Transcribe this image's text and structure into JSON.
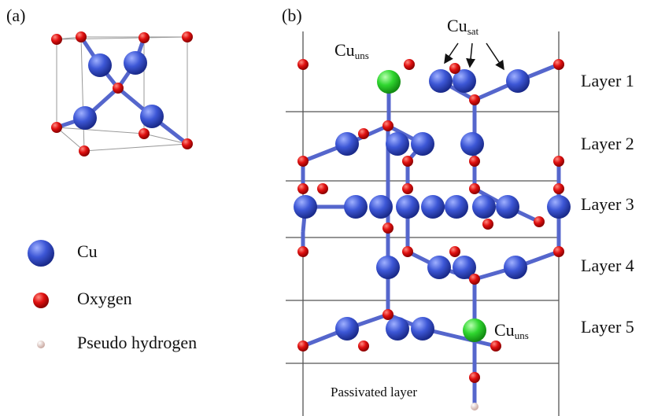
{
  "panel_a": {
    "label": "(a)"
  },
  "legend": [
    {
      "label": "Cu"
    },
    {
      "label": "Oxygen"
    },
    {
      "label": "Pseudo hydrogen"
    }
  ],
  "panel_b": {
    "label": "(b)",
    "annotations": [
      {
        "text": "Cu",
        "sub": "sat"
      },
      {
        "text": "Cu",
        "sub": "uns"
      },
      {
        "text": "Cu",
        "sub": "uns"
      }
    ],
    "layers": [
      "Layer 1",
      "Layer 2",
      "Layer 3",
      "Layer 4",
      "Layer 5"
    ],
    "passivated": "Passivated layer"
  }
}
